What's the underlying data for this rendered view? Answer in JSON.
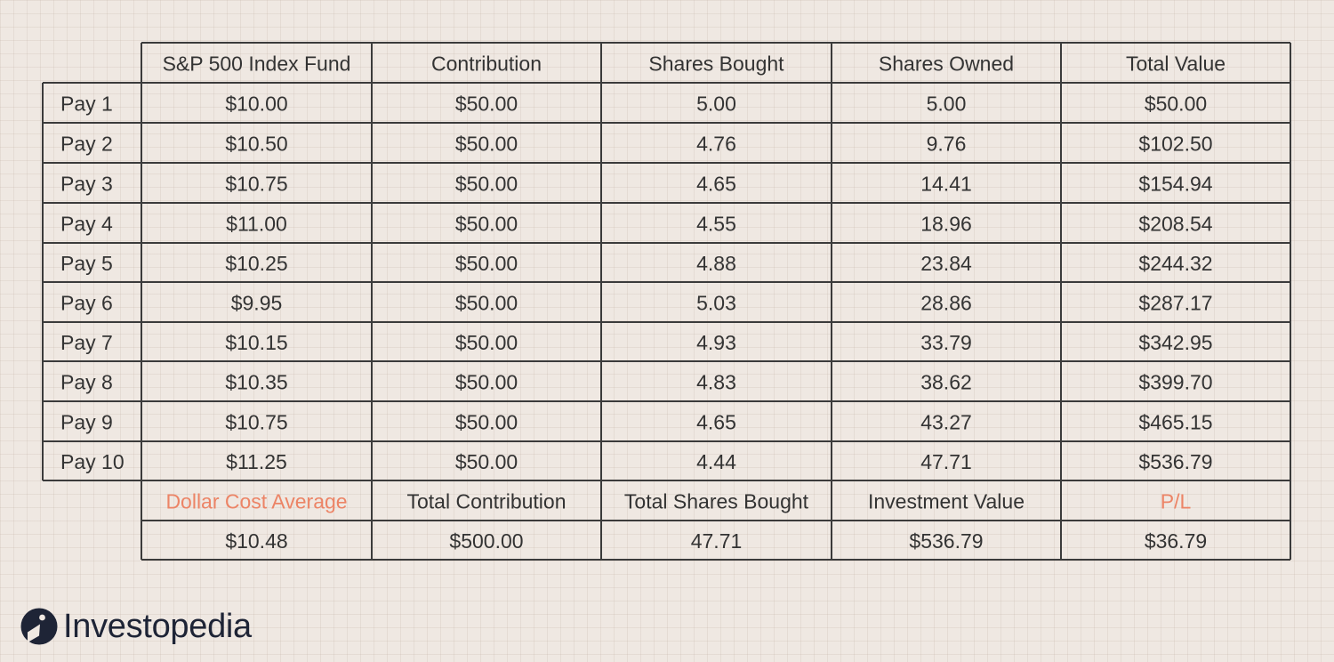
{
  "chart_data": {
    "type": "table",
    "header": [
      "",
      "S&P 500 Index Fund",
      "Contribution",
      "Shares Bought",
      "Shares Owned",
      "Total Value"
    ],
    "rows": [
      [
        "Pay 1",
        "$10.00",
        "$50.00",
        "5.00",
        "5.00",
        "$50.00"
      ],
      [
        "Pay 2",
        "$10.50",
        "$50.00",
        "4.76",
        "9.76",
        "$102.50"
      ],
      [
        "Pay 3",
        "$10.75",
        "$50.00",
        "4.65",
        "14.41",
        "$154.94"
      ],
      [
        "Pay 4",
        "$11.00",
        "$50.00",
        "4.55",
        "18.96",
        "$208.54"
      ],
      [
        "Pay 5",
        "$10.25",
        "$50.00",
        "4.88",
        "23.84",
        "$244.32"
      ],
      [
        "Pay 6",
        "$9.95",
        "$50.00",
        "5.03",
        "28.86",
        "$287.17"
      ],
      [
        "Pay 7",
        "$10.15",
        "$50.00",
        "4.93",
        "33.79",
        "$342.95"
      ],
      [
        "Pay 8",
        "$10.35",
        "$50.00",
        "4.83",
        "38.62",
        "$399.70"
      ],
      [
        "Pay 9",
        "$10.75",
        "$50.00",
        "4.65",
        "43.27",
        "$465.15"
      ],
      [
        "Pay 10",
        "$11.25",
        "$50.00",
        "4.44",
        "47.71",
        "$536.79"
      ]
    ],
    "summary_header": [
      "Dollar Cost Average",
      "Total Contribution",
      "Total Shares Bought",
      "Investment Value",
      "P/L"
    ],
    "summary_values": [
      "$10.48",
      "$500.00",
      "47.71",
      "$536.79",
      "$36.79"
    ],
    "accent_color": "#ec8466",
    "text_color": "#333333",
    "grid_color": "#3b3b3b",
    "background_color": "#efe8e2"
  },
  "logo": {
    "text": "Investopedia",
    "icon": "investopedia-logo-icon",
    "color": "#1e2436"
  }
}
